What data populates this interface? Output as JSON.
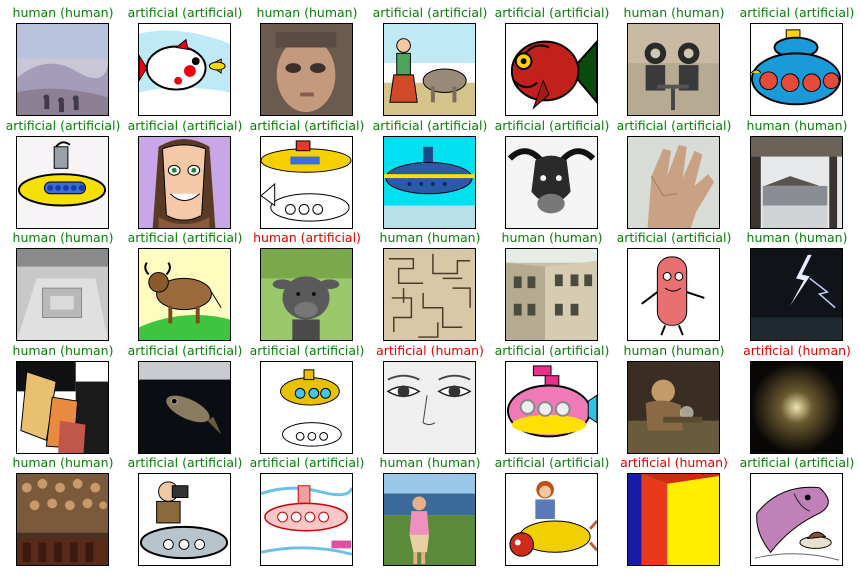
{
  "colors": {
    "correct": "#0a7d0a",
    "incorrect": "#e00000"
  },
  "rows": [
    [
      {
        "label": "human (human)",
        "correct": true,
        "picture": "impressionist seaside painting"
      },
      {
        "label": "artificial (artificial)",
        "correct": true,
        "picture": "cartoon red-white fish"
      },
      {
        "label": "human (human)",
        "correct": true,
        "picture": "mosaic portrait of a man"
      },
      {
        "label": "artificial (artificial)",
        "correct": true,
        "picture": "cartoon farmer with buffalo"
      },
      {
        "label": "artificial (artificial)",
        "correct": true,
        "picture": "cartoon red fish"
      },
      {
        "label": "human (human)",
        "correct": true,
        "picture": "graffiti of divers at a table"
      },
      {
        "label": "artificial (artificial)",
        "correct": true,
        "picture": "cartoon blue submarine"
      }
    ],
    [
      {
        "label": "artificial (artificial)",
        "correct": true,
        "picture": "cartoon yellow submarine"
      },
      {
        "label": "artificial (artificial)",
        "correct": true,
        "picture": "cartoon woman face"
      },
      {
        "label": "artificial (artificial)",
        "correct": true,
        "picture": "cartoon submarines"
      },
      {
        "label": "artificial (artificial)",
        "correct": true,
        "picture": "cartoon submarine underwater"
      },
      {
        "label": "artificial (artificial)",
        "correct": true,
        "picture": "ink drawing of buffalo head"
      },
      {
        "label": "artificial (artificial)",
        "correct": true,
        "picture": "photo of a hand"
      },
      {
        "label": "human (human)",
        "correct": true,
        "picture": "snowy temple veranda"
      }
    ],
    [
      {
        "label": "human (human)",
        "correct": true,
        "picture": "grey room model"
      },
      {
        "label": "artificial (artificial)",
        "correct": true,
        "picture": "cartoon buffalo on grass"
      },
      {
        "label": "human (artificial)",
        "correct": false,
        "picture": "photo of a water buffalo calf"
      },
      {
        "label": "human (human)",
        "correct": true,
        "picture": "maze line pattern"
      },
      {
        "label": "human (human)",
        "correct": true,
        "picture": "old building courtyard"
      },
      {
        "label": "artificial (artificial)",
        "correct": true,
        "picture": "cartoon sausage character"
      },
      {
        "label": "human (human)",
        "correct": true,
        "picture": "lightning at night"
      }
    ],
    [
      {
        "label": "human (human)",
        "correct": true,
        "picture": "abstract paper shapes"
      },
      {
        "label": "artificial (artificial)",
        "correct": true,
        "picture": "fish in dark water"
      },
      {
        "label": "artificial (artificial)",
        "correct": true,
        "picture": "sketch of submarines"
      },
      {
        "label": "artificial (human)",
        "correct": false,
        "picture": "sketch of eyes and nose"
      },
      {
        "label": "artificial (artificial)",
        "correct": true,
        "picture": "cartoon pink submarine"
      },
      {
        "label": "human (human)",
        "correct": true,
        "picture": "painting of man blowing bubbles"
      },
      {
        "label": "artificial (human)",
        "correct": false,
        "picture": "glowing dot pattern"
      }
    ],
    [
      {
        "label": "human (human)",
        "correct": true,
        "picture": "crowded renaissance painting"
      },
      {
        "label": "artificial (artificial)",
        "correct": true,
        "picture": "cartoon photographer on submarine"
      },
      {
        "label": "artificial (artificial)",
        "correct": true,
        "picture": "crayon submarine drawing"
      },
      {
        "label": "human (human)",
        "correct": true,
        "picture": "painting of woman in landscape"
      },
      {
        "label": "artificial (artificial)",
        "correct": true,
        "picture": "collage of woman on submarine"
      },
      {
        "label": "artificial (human)",
        "correct": false,
        "picture": "color field painting"
      },
      {
        "label": "artificial (artificial)",
        "correct": true,
        "picture": "sketch of fish with cake"
      }
    ]
  ]
}
